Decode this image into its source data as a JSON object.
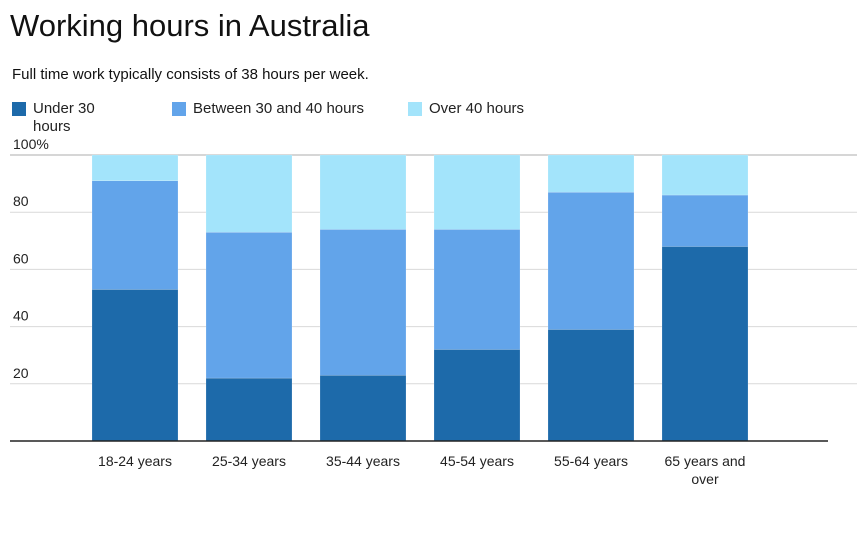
{
  "chart_data": {
    "type": "bar",
    "stacked": true,
    "title": "Working hours in Australia",
    "subtitle": "Full time work typically consists of 38 hours per week.",
    "categories": [
      "18-24 years",
      "25-34 years",
      "35-44 years",
      "45-54 years",
      "55-64 years",
      "65 years and over"
    ],
    "series": [
      {
        "name": "Under 30 hours",
        "color": "#1d6aaa",
        "values": [
          53,
          22,
          23,
          32,
          39,
          68
        ]
      },
      {
        "name": "Between 30 and 40 hours",
        "color": "#62a4ea",
        "values": [
          38,
          51,
          51,
          42,
          48,
          18
        ]
      },
      {
        "name": "Over 40 hours",
        "color": "#a3e4fb",
        "values": [
          9,
          27,
          26,
          26,
          13,
          14
        ]
      }
    ],
    "yticks": [
      "20",
      "40",
      "60",
      "80",
      "100%"
    ],
    "ylim": [
      0,
      100
    ],
    "grid": true,
    "legend": "top-left"
  }
}
